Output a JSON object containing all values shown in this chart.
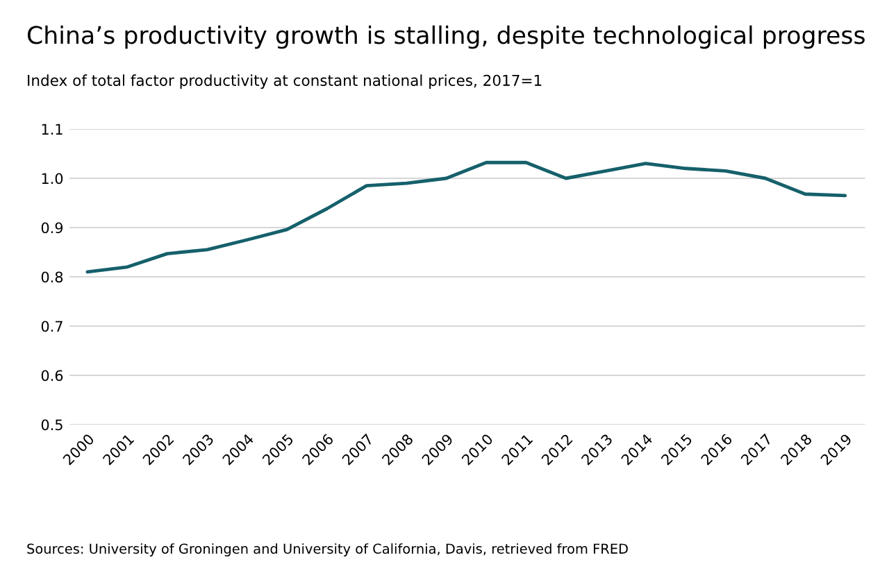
{
  "chart_data": {
    "type": "line",
    "title": "China’s productivity growth is stalling, despite technological progress",
    "subtitle": "Index of total factor productivity at constant national prices, 2017=1",
    "categories": [
      "2000",
      "2001",
      "2002",
      "2003",
      "2004",
      "2005",
      "2006",
      "2007",
      "2008",
      "2009",
      "2010",
      "2011",
      "2012",
      "2013",
      "2014",
      "2015",
      "2016",
      "2017",
      "2018",
      "2019"
    ],
    "series": [
      {
        "color": "#15606b",
        "values": [
          0.81,
          0.82,
          0.847,
          0.855,
          0.875,
          0.896,
          0.938,
          0.985,
          0.99,
          1.0,
          1.032,
          1.032,
          1.0,
          1.015,
          1.03,
          1.02,
          1.015,
          1.0,
          0.968,
          0.965
        ]
      }
    ],
    "ylim": [
      0.5,
      1.1
    ],
    "yticks": [
      {
        "value": 0.5,
        "label": "0.5"
      },
      {
        "value": 0.6,
        "label": "0.6"
      },
      {
        "value": 0.7,
        "label": "0.7"
      },
      {
        "value": 0.8,
        "label": "0.8"
      },
      {
        "value": 0.9,
        "label": "0.9"
      },
      {
        "value": 1.0,
        "label": "1.0"
      },
      {
        "value": 1.1,
        "label": "1.1"
      }
    ],
    "grid": "y",
    "marker": "none",
    "line_style": "solid",
    "annotations": [
      "Sources: University of Groningen and University of California, Davis, retrieved from FRED"
    ]
  }
}
